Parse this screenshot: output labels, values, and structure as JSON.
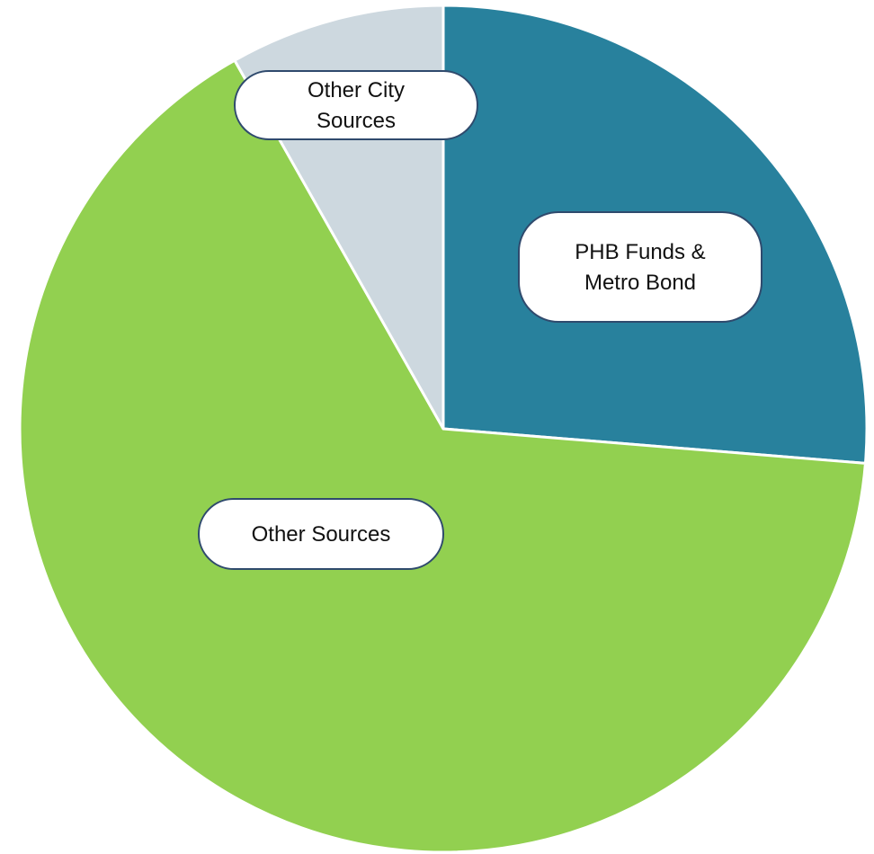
{
  "chart_data": {
    "type": "pie",
    "title": "",
    "start_angle_deg": 0,
    "direction": "clockwise",
    "slices": [
      {
        "label_lines": [
          "PHB Funds &",
          "Metro Bond"
        ],
        "value": 26.3,
        "color": "#28819d"
      },
      {
        "label_lines": [
          "Other Sources"
        ],
        "value": 65.5,
        "color": "#92d050"
      },
      {
        "label_lines": [
          "Other City",
          "Sources"
        ],
        "value": 8.2,
        "color": "#cdd8df"
      }
    ],
    "legend": "none",
    "label_style": "rounded-callout"
  }
}
